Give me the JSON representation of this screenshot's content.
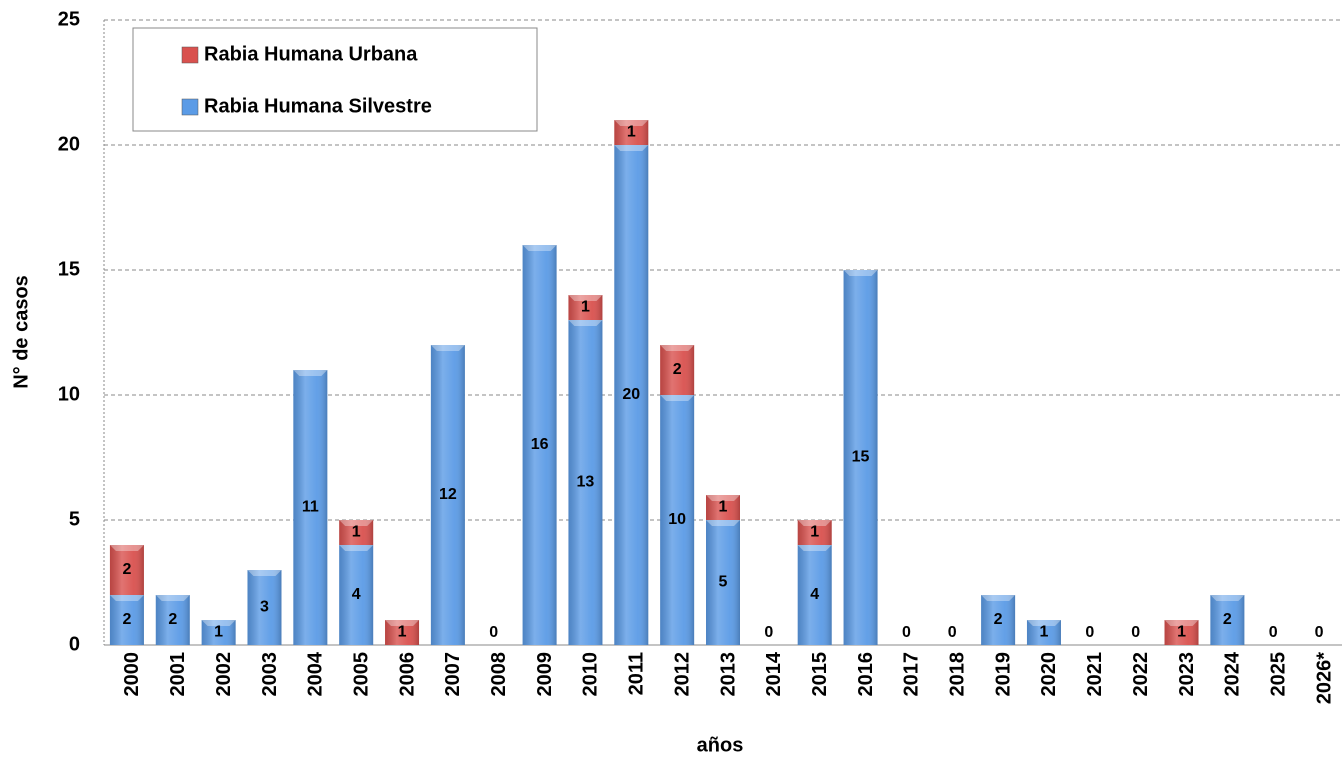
{
  "chart_data": {
    "type": "bar",
    "stacked": true,
    "x_label": "años",
    "y_label": "N° de casos",
    "categories": [
      "2000",
      "2001",
      "2002",
      "2003",
      "2004",
      "2005",
      "2006",
      "2007",
      "2008",
      "2009",
      "2010",
      "2011",
      "2012",
      "2013",
      "2014",
      "2015",
      "2016",
      "2017",
      "2018",
      "2019",
      "2020",
      "2021",
      "2022",
      "2023",
      "2024",
      "2025",
      "2026*"
    ],
    "series": [
      {
        "name": "Rabia Humana Silvestre",
        "color": "#5b9be6",
        "values": [
          2,
          2,
          1,
          3,
          11,
          4,
          null,
          12,
          0,
          16,
          13,
          20,
          10,
          5,
          0,
          4,
          15,
          0,
          0,
          2,
          1,
          0,
          0,
          null,
          2,
          0,
          0
        ]
      },
      {
        "name": "Rabia Humana Urbana",
        "color": "#d9514e",
        "values": [
          2,
          null,
          null,
          null,
          null,
          1,
          1,
          null,
          null,
          null,
          1,
          1,
          2,
          1,
          null,
          1,
          null,
          null,
          null,
          null,
          null,
          null,
          null,
          1,
          null,
          null,
          null
        ]
      }
    ],
    "ylim": [
      0,
      25
    ],
    "yticks": [
      0,
      5,
      10,
      15,
      20,
      25
    ],
    "grid": true
  }
}
